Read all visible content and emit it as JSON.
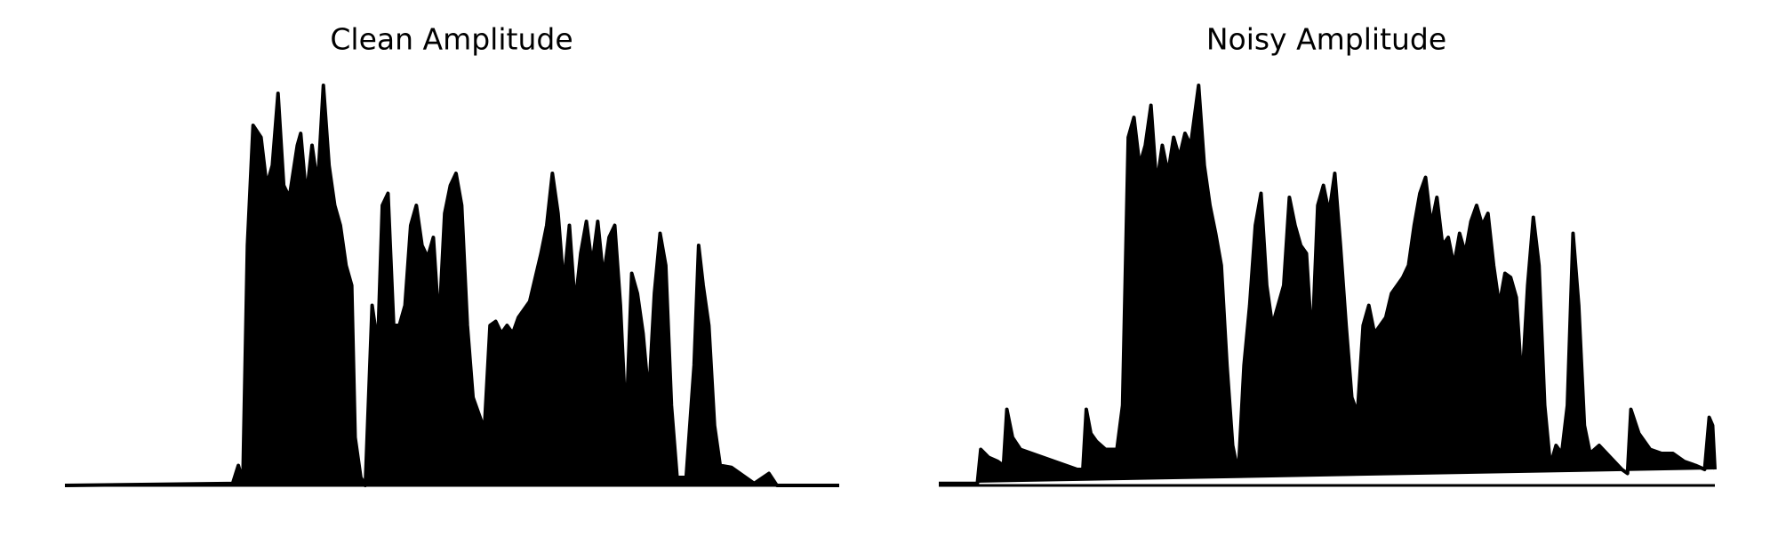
{
  "chart_data": [
    {
      "type": "area",
      "title": "Clean Amplitude",
      "color": "#000000",
      "xlim": [
        0,
        683
      ],
      "ylim": [
        0,
        1
      ],
      "x": [
        0,
        148,
        153,
        157,
        161,
        166,
        173,
        178,
        183,
        188,
        193,
        198,
        205,
        208,
        213,
        218,
        223,
        228,
        233,
        238,
        243,
        248,
        253,
        256,
        261,
        265,
        271,
        276,
        280,
        285,
        290,
        295,
        300,
        305,
        310,
        315,
        320,
        325,
        330,
        335,
        340,
        345,
        350,
        355,
        360,
        365,
        370,
        375,
        380,
        385,
        390,
        395,
        400,
        405,
        410,
        415,
        420,
        425,
        430,
        435,
        440,
        445,
        450,
        455,
        460,
        465,
        470,
        475,
        480,
        485,
        490,
        495,
        500,
        505,
        510,
        515,
        520,
        525,
        530,
        535,
        540,
        548,
        555,
        559,
        563,
        568,
        573,
        578,
        588,
        598,
        608,
        621,
        628,
        683
      ],
      "values": [
        0,
        0.005,
        0.05,
        0.01,
        0.6,
        0.9,
        0.87,
        0.75,
        0.8,
        0.98,
        0.75,
        0.72,
        0.85,
        0.88,
        0.72,
        0.85,
        0.75,
        1.0,
        0.8,
        0.7,
        0.65,
        0.55,
        0.5,
        0.12,
        0.02,
        0,
        0.45,
        0.35,
        0.7,
        0.73,
        0.4,
        0.4,
        0.45,
        0.65,
        0.7,
        0.6,
        0.57,
        0.62,
        0.4,
        0.68,
        0.75,
        0.78,
        0.7,
        0.4,
        0.22,
        0.18,
        0.14,
        0.4,
        0.41,
        0.38,
        0.4,
        0.38,
        0.42,
        0.44,
        0.46,
        0.52,
        0.58,
        0.65,
        0.78,
        0.68,
        0.5,
        0.65,
        0.45,
        0.58,
        0.66,
        0.55,
        0.66,
        0.52,
        0.62,
        0.65,
        0.45,
        0.15,
        0.53,
        0.48,
        0.38,
        0.22,
        0.48,
        0.63,
        0.55,
        0.2,
        0.02,
        0.02,
        0.3,
        0.6,
        0.5,
        0.4,
        0.15,
        0.05,
        0.045,
        0.025,
        0.005,
        0.03,
        0,
        0
      ]
    },
    {
      "type": "area",
      "title": "Noisy Amplitude",
      "color": "#000000",
      "xlim": [
        0,
        684
      ],
      "ylim": [
        0,
        1
      ],
      "x": [
        0,
        34,
        37,
        44,
        52,
        57,
        60,
        65,
        72,
        82,
        92,
        102,
        112,
        122,
        127,
        130,
        134,
        139,
        147,
        157,
        162,
        167,
        172,
        177,
        182,
        187,
        192,
        197,
        202,
        207,
        212,
        217,
        222,
        229,
        234,
        239,
        244,
        249,
        254,
        259,
        264,
        269,
        274,
        279,
        284,
        289,
        294,
        299,
        304,
        309,
        314,
        319,
        324,
        329,
        334,
        339,
        344,
        349,
        354,
        359,
        364,
        369,
        374,
        379,
        384,
        389,
        394,
        399,
        404,
        409,
        414,
        419,
        424,
        429,
        434,
        439,
        444,
        449,
        454,
        459,
        464,
        469,
        474,
        479,
        484,
        489,
        494,
        499,
        504,
        509,
        514,
        519,
        524,
        529,
        534,
        539,
        544,
        549,
        554,
        559,
        564,
        569,
        574,
        582,
        592,
        602,
        607,
        610,
        617,
        627,
        637,
        647,
        657,
        667,
        675,
        679,
        682,
        684
      ],
      "values": [
        0.005,
        0.005,
        0.09,
        0.07,
        0.06,
        0.05,
        0.19,
        0.12,
        0.09,
        0.08,
        0.07,
        0.06,
        0.05,
        0.04,
        0.04,
        0.19,
        0.13,
        0.11,
        0.09,
        0.09,
        0.2,
        0.87,
        0.92,
        0.8,
        0.85,
        0.95,
        0.75,
        0.85,
        0.78,
        0.87,
        0.82,
        0.88,
        0.85,
        1.0,
        0.8,
        0.7,
        0.63,
        0.55,
        0.3,
        0.1,
        0.03,
        0.3,
        0.45,
        0.65,
        0.73,
        0.5,
        0.4,
        0.45,
        0.5,
        0.72,
        0.65,
        0.6,
        0.58,
        0.35,
        0.7,
        0.75,
        0.68,
        0.78,
        0.6,
        0.4,
        0.22,
        0.18,
        0.4,
        0.45,
        0.38,
        0.4,
        0.42,
        0.48,
        0.5,
        0.52,
        0.55,
        0.65,
        0.73,
        0.77,
        0.65,
        0.72,
        0.6,
        0.62,
        0.55,
        0.63,
        0.58,
        0.66,
        0.7,
        0.65,
        0.68,
        0.55,
        0.45,
        0.53,
        0.52,
        0.47,
        0.25,
        0.5,
        0.67,
        0.55,
        0.2,
        0.05,
        0.1,
        0.08,
        0.2,
        0.63,
        0.45,
        0.15,
        0.08,
        0.1,
        0.07,
        0.04,
        0.03,
        0.19,
        0.13,
        0.09,
        0.08,
        0.08,
        0.06,
        0.05,
        0.04,
        0.17,
        0.15,
        0.04
      ]
    }
  ]
}
